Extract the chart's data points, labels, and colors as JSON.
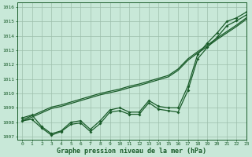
{
  "xlabel": "Graphe pression niveau de la mer (hPa)",
  "xlim": [
    -0.5,
    23
  ],
  "ylim": [
    1006.8,
    1016.3
  ],
  "yticks": [
    1007,
    1008,
    1009,
    1010,
    1011,
    1012,
    1013,
    1014,
    1015,
    1016
  ],
  "xticks": [
    0,
    1,
    2,
    3,
    4,
    5,
    6,
    7,
    8,
    9,
    10,
    11,
    12,
    13,
    14,
    15,
    16,
    17,
    18,
    19,
    20,
    21,
    22,
    23
  ],
  "background_color": "#c8e8d8",
  "plot_bg_color": "#c8e8d8",
  "line_color": "#1a5c2a",
  "grid_color": "#9dbfac",
  "line_jagged1": [
    1008.3,
    1008.5,
    1007.7,
    1007.2,
    1007.4,
    1008.0,
    1008.1,
    1007.5,
    1008.1,
    1008.85,
    1009.0,
    1008.7,
    1008.7,
    1009.5,
    1009.1,
    1009.0,
    1009.0,
    1010.5,
    1012.7,
    1013.5,
    1014.2,
    1015.0,
    1015.25,
    1015.65
  ],
  "line_jagged2": [
    1008.1,
    1008.2,
    1007.6,
    1007.1,
    1007.35,
    1007.85,
    1007.95,
    1007.35,
    1007.9,
    1008.7,
    1008.8,
    1008.55,
    1008.55,
    1009.35,
    1008.9,
    1008.8,
    1008.7,
    1010.2,
    1012.4,
    1013.2,
    1013.9,
    1014.7,
    1015.05,
    1015.45
  ],
  "line_straight1": [
    1008.05,
    1008.35,
    1008.65,
    1008.95,
    1009.1,
    1009.3,
    1009.5,
    1009.7,
    1009.9,
    1010.05,
    1010.2,
    1010.4,
    1010.55,
    1010.75,
    1010.95,
    1011.15,
    1011.6,
    1012.3,
    1012.8,
    1013.25,
    1013.75,
    1014.2,
    1014.65,
    1015.15
  ],
  "line_straight2": [
    1008.15,
    1008.45,
    1008.75,
    1009.05,
    1009.2,
    1009.4,
    1009.6,
    1009.8,
    1010.0,
    1010.15,
    1010.3,
    1010.5,
    1010.65,
    1010.85,
    1011.05,
    1011.25,
    1011.7,
    1012.4,
    1012.9,
    1013.35,
    1013.85,
    1014.3,
    1014.75,
    1015.25
  ]
}
